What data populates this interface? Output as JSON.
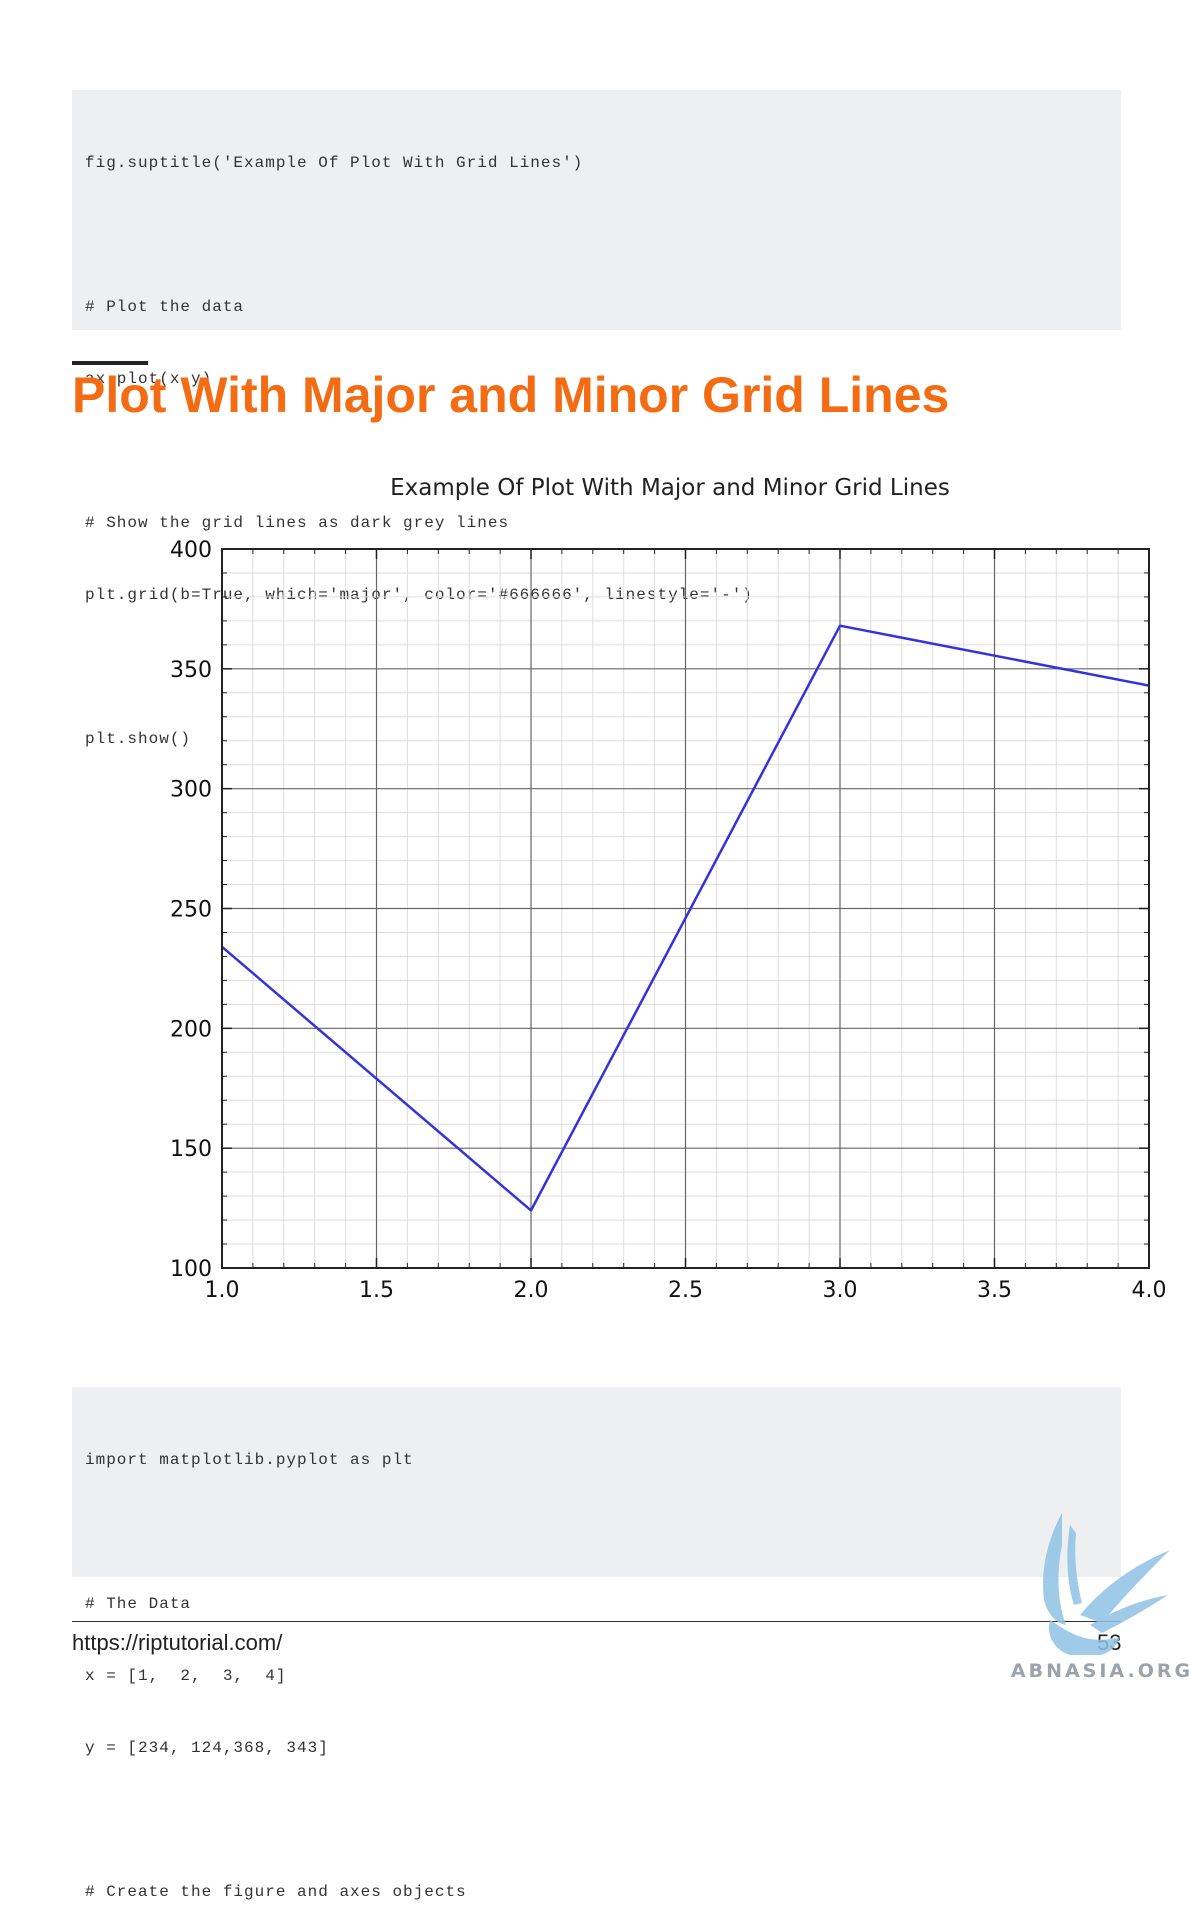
{
  "code_top": {
    "lines": [
      "fig.suptitle('Example Of Plot With Grid Lines')",
      "",
      "# Plot the data",
      "ax.plot(x,y)",
      "",
      "# Show the grid lines as dark grey lines",
      "plt.grid(b=True, which='major', color='#666666', linestyle='-')",
      "",
      "plt.show()"
    ]
  },
  "section": {
    "heading": "Plot With Major and Minor Grid Lines"
  },
  "chart_data": {
    "type": "line",
    "title": "Example Of Plot With Major and Minor Grid Lines",
    "xlabel": "",
    "ylabel": "",
    "x": [
      1,
      2,
      3,
      4
    ],
    "series": [
      {
        "values": [
          234,
          124,
          368,
          343
        ],
        "color": "#3333dd"
      }
    ],
    "xlim": [
      1.0,
      4.0
    ],
    "ylim": [
      100,
      400
    ],
    "xticks": [
      "1.0",
      "1.5",
      "2.0",
      "2.5",
      "3.0",
      "3.5",
      "4.0"
    ],
    "yticks": [
      "100",
      "150",
      "200",
      "250",
      "300",
      "350",
      "400"
    ],
    "grid": {
      "major": true,
      "minor": true,
      "major_color": "#666666",
      "minor_color": "#dddddd"
    }
  },
  "code_bottom": {
    "lines": [
      "import matplotlib.pyplot as plt",
      "",
      "# The Data",
      "x = [1,  2,  3,  4]",
      "y = [234, 124,368, 343]",
      "",
      "# Create the figure and axes objects"
    ]
  },
  "footer": {
    "url": "https://riptutorial.com/",
    "page_number": "53"
  },
  "watermark": {
    "text": "ABNASIA.ORG",
    "icon": "winged-creature-icon"
  }
}
